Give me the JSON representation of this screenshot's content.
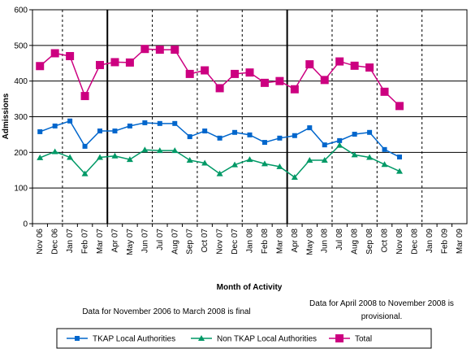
{
  "chart_data": {
    "type": "line",
    "y_label": "Admissions",
    "x_label": "Month of Activity",
    "annotations": [
      "Data for November 2006 to March 2008 is final",
      "Data for April 2008 to November 2008 is provisional."
    ],
    "categories": [
      "Nov 06",
      "Dec 06",
      "Jan 07",
      "Feb 07",
      "Mar 07",
      "Apr 07",
      "May 07",
      "Jun 07",
      "Jul 07",
      "Aug 07",
      "Sep 07",
      "Oct 07",
      "Nov 07",
      "Dec 07",
      "Jan 08",
      "Feb 08",
      "Mar 08",
      "Apr 08",
      "May 08",
      "Jun 08",
      "Jul 08",
      "Aug 08",
      "Sep 08",
      "Oct 08",
      "Nov 08",
      "Dec 08",
      "Jan 09",
      "Feb 09",
      "Mar 09"
    ],
    "series": [
      {
        "name": "TKAP Local Authorities",
        "color": "#0066cc",
        "marker": "square",
        "values": [
          258,
          274,
          288,
          217,
          260,
          260,
          274,
          283,
          281,
          281,
          244,
          260,
          240,
          256,
          249,
          228,
          240,
          247,
          269,
          221,
          233,
          251,
          256,
          208,
          187,
          null,
          null,
          null,
          null
        ]
      },
      {
        "name": "Non TKAP Local Authorities",
        "color": "#009966",
        "marker": "triangle",
        "values": [
          185,
          202,
          186,
          140,
          186,
          190,
          180,
          207,
          205,
          205,
          178,
          170,
          140,
          165,
          180,
          168,
          160,
          130,
          178,
          178,
          220,
          193,
          186,
          166,
          147,
          null,
          null,
          null,
          null
        ]
      },
      {
        "name": "Total",
        "color": "#cc0080",
        "marker": "big-square",
        "values": [
          442,
          478,
          470,
          358,
          445,
          453,
          452,
          490,
          488,
          488,
          420,
          430,
          380,
          420,
          424,
          395,
          400,
          377,
          447,
          403,
          455,
          443,
          438,
          370,
          330,
          null,
          null,
          null,
          null
        ]
      }
    ],
    "ylim": [
      0,
      600
    ],
    "yticks": [
      0,
      100,
      200,
      300,
      400,
      500,
      600
    ],
    "grid": true,
    "legend": "bottom"
  }
}
